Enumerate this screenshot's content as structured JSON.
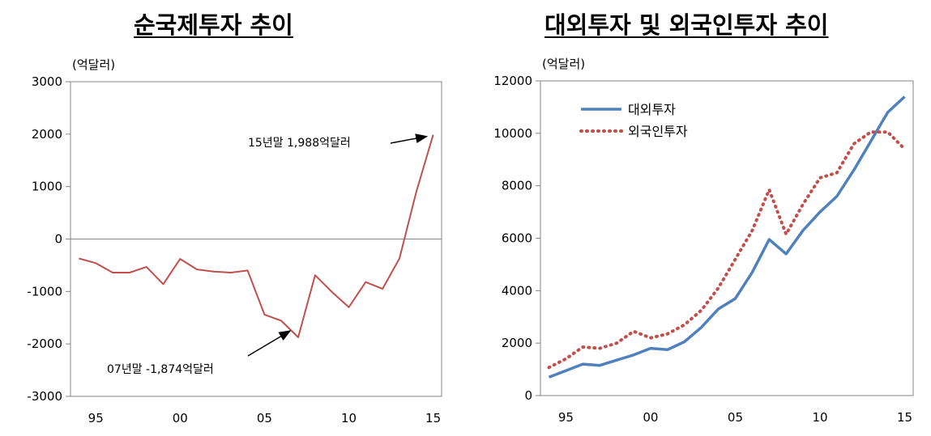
{
  "chart_data": [
    {
      "type": "line",
      "title": "순국제투자 추이",
      "unit_label": "(억달러)",
      "x": [
        1994,
        1995,
        1996,
        1997,
        1998,
        1999,
        2000,
        2001,
        2002,
        2003,
        2004,
        2005,
        2006,
        2007,
        2008,
        2009,
        2010,
        2011,
        2012,
        2013,
        2014,
        2015
      ],
      "xticks": [
        "95",
        "00",
        "05",
        "10",
        "15"
      ],
      "ylim": [
        -3000,
        3000
      ],
      "yticks": [
        "3000",
        "2000",
        "1000",
        "0",
        "-1000",
        "-2000",
        "-3000"
      ],
      "series": [
        {
          "color": "#c0504d",
          "values": [
            -370,
            -460,
            -640,
            -640,
            -530,
            -860,
            -380,
            -580,
            -620,
            -640,
            -600,
            -1440,
            -1560,
            -1874,
            -690,
            -1010,
            -1300,
            -820,
            -950,
            -370,
            900,
            1988
          ]
        }
      ],
      "annotations": [
        {
          "text": "15년말  1,988억달러"
        },
        {
          "text": "07년말  -1,874억달러"
        }
      ]
    },
    {
      "type": "line",
      "title": "대외투자 및 외국인투자 추이",
      "unit_label": "(억달러)",
      "x": [
        1994,
        1995,
        1996,
        1997,
        1998,
        1999,
        2000,
        2001,
        2002,
        2003,
        2004,
        2005,
        2006,
        2007,
        2008,
        2009,
        2010,
        2011,
        2012,
        2013,
        2014,
        2015
      ],
      "xticks": [
        "95",
        "00",
        "05",
        "10",
        "15"
      ],
      "ylim": [
        0,
        12000
      ],
      "yticks": [
        "12000",
        "10000",
        "8000",
        "6000",
        "4000",
        "2000",
        "0"
      ],
      "series": [
        {
          "name": "대외투자",
          "color": "#4f81bd",
          "style": "solid",
          "values": [
            700,
            950,
            1200,
            1150,
            1350,
            1550,
            1800,
            1750,
            2050,
            2600,
            3300,
            3700,
            4700,
            5950,
            5400,
            6300,
            7000,
            7600,
            8600,
            9700,
            10800,
            11400
          ]
        },
        {
          "name": "외국인투자",
          "color": "#c0504d",
          "style": "dotted",
          "values": [
            1070,
            1400,
            1850,
            1800,
            2000,
            2450,
            2200,
            2350,
            2700,
            3250,
            4100,
            5200,
            6300,
            7850,
            6150,
            7300,
            8300,
            8500,
            9600,
            10050,
            10050,
            9400
          ]
        }
      ]
    }
  ]
}
